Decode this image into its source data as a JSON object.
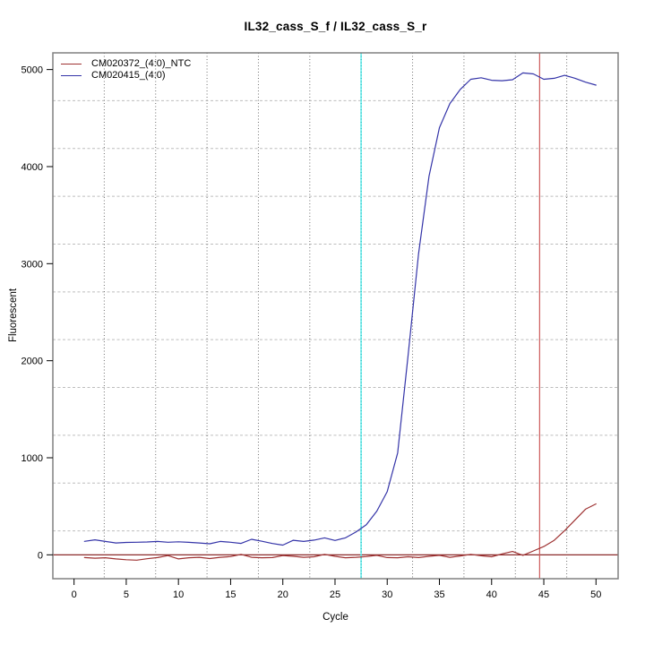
{
  "chart_data": {
    "type": "line",
    "title": "IL32_cass_S_f / IL32_cass_S_r",
    "xlabel": "Cycle",
    "ylabel": "Fluorescent",
    "x": [
      1,
      2,
      3,
      4,
      5,
      6,
      7,
      8,
      9,
      10,
      11,
      12,
      13,
      14,
      15,
      16,
      17,
      18,
      19,
      20,
      21,
      22,
      23,
      24,
      25,
      26,
      27,
      28,
      29,
      30,
      31,
      32,
      33,
      34,
      35,
      36,
      37,
      38,
      39,
      40,
      41,
      42,
      43,
      44,
      45,
      46,
      47,
      48,
      49,
      50
    ],
    "series": [
      {
        "name": "CM020372_(4:0)_NTC",
        "color": "#9e3232",
        "values": [
          -28,
          -35,
          -30,
          -42,
          -50,
          -55,
          -40,
          -28,
          -8,
          -42,
          -30,
          -25,
          -38,
          -25,
          -18,
          5,
          -25,
          -30,
          -28,
          -8,
          -15,
          -25,
          -20,
          5,
          -15,
          -30,
          -25,
          -18,
          -5,
          -28,
          -30,
          -20,
          -28,
          -15,
          -5,
          -25,
          -12,
          5,
          -10,
          -20,
          10,
          35,
          -5,
          40,
          85,
          150,
          250,
          360,
          470,
          525
        ]
      },
      {
        "name": "CM020415_(4:0)",
        "color": "#3434a8",
        "values": [
          139,
          155,
          138,
          122,
          128,
          130,
          132,
          138,
          130,
          134,
          129,
          122,
          114,
          138,
          130,
          118,
          160,
          140,
          117,
          100,
          150,
          138,
          152,
          175,
          148,
          175,
          235,
          310,
          450,
          650,
          1050,
          2050,
          3100,
          3900,
          4400,
          4650,
          4795,
          4900,
          4915,
          4890,
          4885,
          4895,
          4965,
          4955,
          4900,
          4910,
          4940,
          4910,
          4870,
          4840
        ]
      }
    ],
    "x_ticks": [
      0,
      5,
      10,
      15,
      20,
      25,
      30,
      35,
      40,
      45,
      50
    ],
    "y_ticks": [
      0,
      1000,
      2000,
      3000,
      4000,
      5000
    ],
    "xlim": [
      -2.03,
      52.12
    ],
    "ylim": [
      -246,
      5172
    ],
    "grid": {
      "divisions": 11,
      "h_style": "dashed",
      "v_style": "dotted"
    },
    "vlines": [
      {
        "x": 27.5,
        "name": "ct-marker-cyan",
        "color": "#7fefef",
        "dot_color": "#10b2b2"
      },
      {
        "x": 44.6,
        "name": "ct-marker-red",
        "color": "#cd5c5c"
      }
    ],
    "hlines": [
      {
        "y": 0,
        "name": "zero-baseline",
        "color": "#8b2a2a"
      }
    ],
    "legend": {
      "position": "top-left"
    },
    "colors": {
      "background": "#ffffff",
      "box": "#808080",
      "grid_h": "#bdbdbd",
      "grid_v": "#6e6e6e",
      "tick_text": "#000000"
    }
  }
}
